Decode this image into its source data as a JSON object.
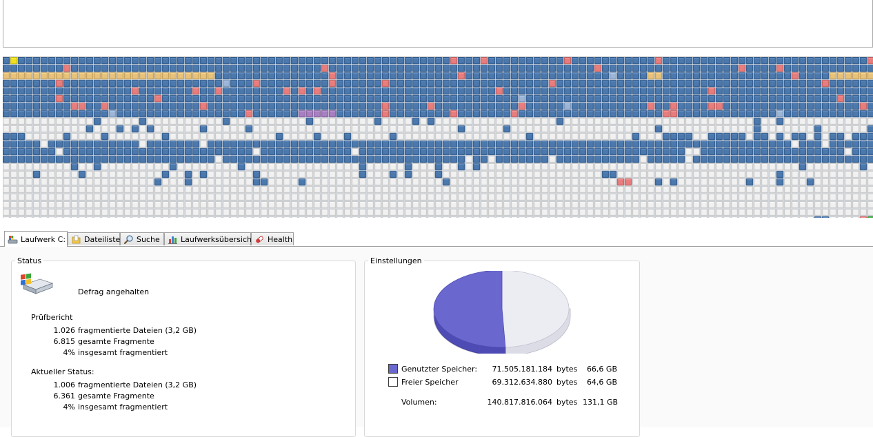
{
  "blockmap": {
    "colors": {
      "used": "#4b78ad",
      "free": "#f1f1f1",
      "fragmented": "#e87d7d",
      "system": "#e8c27a",
      "light_used": "#9cb6d9",
      "special": "#a87fc0",
      "mft": "#f0e020",
      "green": "#3aa63a"
    }
  },
  "tabs": [
    {
      "label": "Laufwerk C:",
      "icon": "drive-icon"
    },
    {
      "label": "Dateiliste",
      "icon": "folder-icon"
    },
    {
      "label": "Suche",
      "icon": "search-icon"
    },
    {
      "label": "Laufwerksübersicht",
      "icon": "chart-icon"
    },
    {
      "label": "Health",
      "icon": "health-icon"
    }
  ],
  "status": {
    "title": "Status",
    "icon": "hard-drive-icon",
    "state": "Defrag angehalten",
    "report": {
      "title": "Prüfbericht",
      "rows": [
        {
          "value": "1.026",
          "label": "fragmentierte Dateien (3,2 GB)"
        },
        {
          "value": "6.815",
          "label": "gesamte Fragmente"
        },
        {
          "value": "4%",
          "label": "insgesamt fragmentiert"
        }
      ]
    },
    "current": {
      "title": "Aktueller Status:",
      "rows": [
        {
          "value": "1.006",
          "label": "fragmentierte Dateien (3,2 GB)"
        },
        {
          "value": "6.361",
          "label": "gesamte Fragmente"
        },
        {
          "value": "4%",
          "label": "insgesamt fragmentiert"
        }
      ]
    }
  },
  "settings": {
    "title": "Einstellungen",
    "used": {
      "label": "Genutzter Speicher:",
      "bytes": "71.505.181.184",
      "unit": "bytes",
      "size": "66,6 GB",
      "color": "#6a68cf"
    },
    "free": {
      "label": "Freier Speicher",
      "bytes": "69.312.634.880",
      "unit": "bytes",
      "size": "64,6 GB",
      "color": "#ffffff"
    },
    "volume": {
      "label": "Volumen:",
      "bytes": "140.817.816.064",
      "unit": "bytes",
      "size": "131,1 GB"
    },
    "pie": {
      "used_fraction": 0.508
    }
  }
}
